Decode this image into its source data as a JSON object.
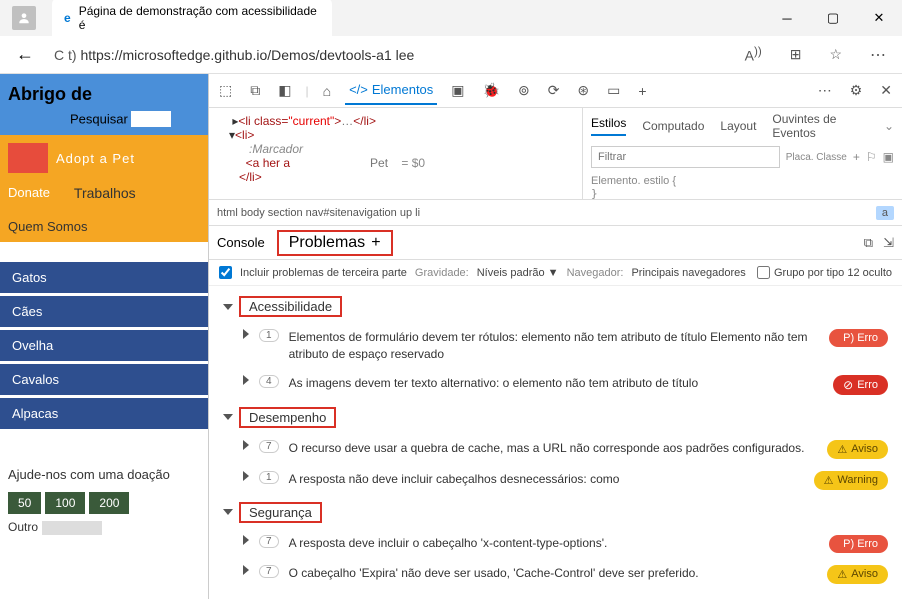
{
  "titlebar": {
    "tab_title": "Página de demonstração com acessibilidade é"
  },
  "addressbar": {
    "url_prefix": "C t) ",
    "url": "https://microsoftedge.github.io/Demos/devtools-a1 lee"
  },
  "website": {
    "header": "Abrigo de",
    "search_label": "Pesquisar",
    "adopt": "Adopt a Pet",
    "donate": "Donate",
    "jobs": "Trabalhos",
    "about": "Quem Somos",
    "categories": [
      "Gatos",
      "Cães",
      "Ovelha",
      "Cavalos",
      "Alpacas"
    ],
    "donation_title": "Ajude-nos com uma doação",
    "donation_amounts": [
      "50",
      "100",
      "200"
    ],
    "other": "Outro"
  },
  "devtools": {
    "elements_tab": "Elementos",
    "dom": {
      "line1_open": "<li class=",
      "line1_attr": "\"current\"",
      "line1_mid": ">",
      "line1_dots": "…",
      "line1_close": "</li>",
      "line2": "<li>",
      "marker": ":Marcador",
      "line3": "<a her a",
      "line3_txt": "Pet",
      "eq": "= $0",
      "line4": "</li>"
    },
    "breadcrumb": "html body section nav#sitenavigation up li",
    "breadcrumb_sel": "a",
    "styles": {
      "tabs": [
        "Estilos",
        "Computado",
        "Layout",
        "Ouvintes de Eventos"
      ],
      "filter": "Filtrar",
      "placa": "Placa. Classe",
      "rule": "Elemento. estilo {",
      "rule_close": "}"
    },
    "console_tab": "Console",
    "problemas_tab": "Problemas",
    "filters": {
      "include_label": "Incluir problemas de terceira parte",
      "severity_label": "Gravidade:",
      "severity_value": "Níveis padrão",
      "browser_label": "Navegador:",
      "browser_value": "Principais navegadores",
      "group_label": "Grupo por tipo 12 oculto"
    },
    "categories": [
      {
        "name": "Acessibilidade",
        "issues": [
          {
            "count": "1",
            "msg": "Elementos de formulário devem ter rótulos: elemento não tem atributo de título Elemento não tem atributo de espaço reservado",
            "badge": "P) Erro",
            "badge_class": "badge-error"
          },
          {
            "count": "4",
            "msg": "As imagens devem ter texto alternativo: o elemento não tem atributo de título",
            "badge": "Erro",
            "badge_class": "badge-error2",
            "icon": "err-icon"
          }
        ]
      },
      {
        "name": "Desempenho",
        "issues": [
          {
            "count": "7",
            "msg": "O recurso deve usar a quebra de cache, mas a URL não corresponde aos padrões configurados.",
            "badge": "Aviso",
            "badge_class": "badge-warn",
            "icon": "warn-icon"
          },
          {
            "count": "1",
            "msg": "A resposta não deve incluir cabeçalhos desnecessários: como",
            "badge": "Warning",
            "badge_class": "badge-warn",
            "icon": "warn-icon"
          }
        ]
      },
      {
        "name": "Segurança",
        "issues": [
          {
            "count": "7",
            "msg": "A resposta deve incluir o cabeçalho 'x-content-type-options'.",
            "badge": "P) Erro",
            "badge_class": "badge-error"
          },
          {
            "count": "7",
            "msg": "O cabeçalho 'Expira' não deve ser usado, 'Cache-Control' deve ser preferido.",
            "badge": "Aviso",
            "badge_class": "badge-warn",
            "icon": "warn-icon"
          }
        ]
      }
    ]
  }
}
